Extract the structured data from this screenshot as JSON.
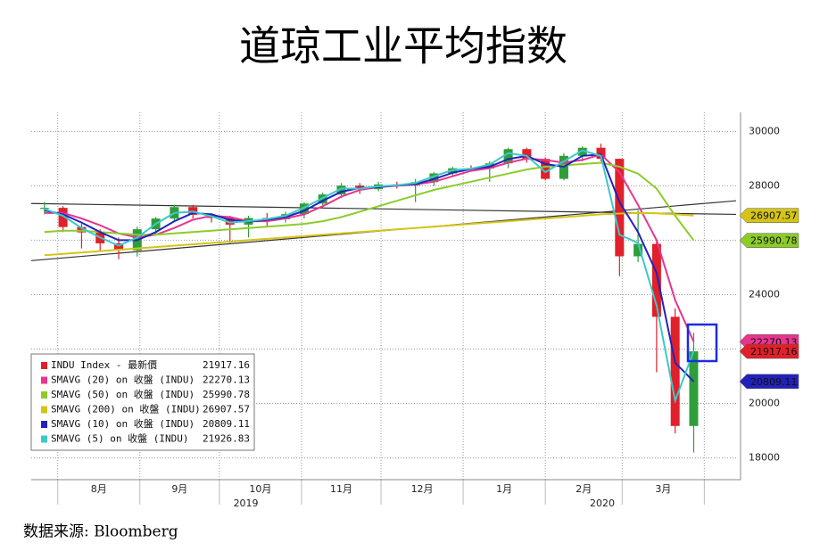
{
  "chart_data": {
    "type": "candlestick",
    "title": "道琼工业平均指数",
    "source": "数据来源: Bloomberg",
    "xlim": [
      0,
      266
    ],
    "ylim": [
      17200,
      30700
    ],
    "yticks": [
      18000,
      20000,
      22000,
      24000,
      26000,
      28000,
      30000
    ],
    "xticks": [
      {
        "value": 25.5,
        "label": "8月"
      },
      {
        "value": 56,
        "label": "9月"
      },
      {
        "value": 86.5,
        "label": "10月"
      },
      {
        "value": 117,
        "label": "11月"
      },
      {
        "value": 147.5,
        "label": "12月"
      },
      {
        "value": 178.5,
        "label": "1月"
      },
      {
        "value": 208.5,
        "label": "2月"
      },
      {
        "value": 238.5,
        "label": "3月"
      }
    ],
    "xgrid": [
      10,
      41,
      71,
      102,
      132,
      163,
      194,
      223,
      254
    ],
    "year_labels": [
      {
        "value": 81,
        "label": "2019"
      },
      {
        "value": 215.5,
        "label": "2020"
      }
    ],
    "grid": true,
    "x": [
      5,
      12,
      19,
      26,
      33,
      40,
      47,
      54,
      61,
      68,
      75,
      82,
      89,
      96,
      103,
      110,
      117,
      124,
      131,
      138,
      145,
      152,
      159,
      166,
      173,
      180,
      187,
      194,
      201,
      208,
      215,
      222,
      229,
      236,
      243,
      250
    ],
    "candles": {
      "name": "INDU Index - 最新價",
      "color": "#e0202a",
      "up_color": "#2e9e3a",
      "down_color": "#e0202a",
      "open": [
        27150,
        27190,
        26485,
        26287,
        25886,
        25628,
        26403,
        26797,
        27219,
        26935,
        26820,
        26573,
        26817,
        26770,
        26958,
        27347,
        27681,
        28005,
        27876,
        28051,
        28015,
        28135,
        28455,
        28645,
        28634,
        28824,
        29348,
        28990,
        28256,
        29102,
        29398,
        28992,
        25409,
        25865,
        23186,
        19174
      ],
      "high": [
        27400,
        27250,
        26600,
        26400,
        26100,
        26500,
        26850,
        27300,
        27300,
        27000,
        26900,
        26900,
        27000,
        27050,
        27400,
        27750,
        28100,
        28100,
        28150,
        28150,
        28250,
        28500,
        28700,
        28750,
        28900,
        29400,
        29400,
        29050,
        29200,
        29450,
        29550,
        29000,
        27100,
        26000,
        23500,
        22600
      ],
      "low": [
        26950,
        26300,
        25700,
        25600,
        25300,
        25400,
        26200,
        26700,
        26800,
        26650,
        25900,
        26100,
        26500,
        26650,
        26800,
        27200,
        27550,
        27700,
        27800,
        27900,
        27400,
        28000,
        28350,
        28550,
        28150,
        28650,
        28850,
        28200,
        28200,
        28900,
        28900,
        24680,
        25200,
        21150,
        18900,
        18200
      ],
      "close": [
        27190,
        26485,
        26287,
        25886,
        25628,
        26403,
        26797,
        27219,
        26935,
        26820,
        26573,
        26817,
        26770,
        26958,
        27347,
        27681,
        28005,
        27876,
        28051,
        28015,
        28135,
        28455,
        28645,
        28634,
        28824,
        29348,
        28990,
        28256,
        29102,
        29398,
        28992,
        25409,
        25865,
        23186,
        19174,
        21917.16
      ]
    },
    "series": [
      {
        "name": "SMAVG (20)  on 收盤 (INDU)",
        "color": "#e8358f",
        "values": [
          27000,
          27000,
          26800,
          26550,
          26250,
          26100,
          26200,
          26450,
          26750,
          26900,
          26850,
          26700,
          26700,
          26800,
          26950,
          27250,
          27600,
          27850,
          27950,
          28000,
          28050,
          28150,
          28350,
          28550,
          28650,
          28850,
          29000,
          28950,
          28850,
          28950,
          29150,
          28500,
          27300,
          26000,
          23800,
          22270.13
        ]
      },
      {
        "name": "SMAVG (50)  on 收盤 (INDU)",
        "color": "#8ccc2a",
        "values": [
          26300,
          26350,
          26350,
          26300,
          26250,
          26200,
          26200,
          26250,
          26300,
          26350,
          26400,
          26450,
          26500,
          26550,
          26600,
          26700,
          26850,
          27050,
          27250,
          27450,
          27650,
          27850,
          28000,
          28150,
          28300,
          28450,
          28600,
          28700,
          28750,
          28800,
          28850,
          28700,
          28450,
          27900,
          26900,
          25990.78
        ]
      },
      {
        "name": "SMAVG (200) on 收盤 (INDU)",
        "color": "#d4c419",
        "values": [
          25450,
          25500,
          25550,
          25600,
          25650,
          25700,
          25750,
          25800,
          25850,
          25900,
          25950,
          26000,
          26050,
          26100,
          26150,
          26200,
          26250,
          26300,
          26350,
          26400,
          26450,
          26500,
          26550,
          26600,
          26650,
          26700,
          26750,
          26800,
          26850,
          26900,
          26950,
          26980,
          27000,
          26990,
          26950,
          26907.57
        ]
      },
      {
        "name": "SMAVG (10)  on 收盤 (INDU)",
        "color": "#2222bb",
        "values": [
          27100,
          26950,
          26650,
          26300,
          26000,
          26000,
          26300,
          26700,
          27000,
          26950,
          26750,
          26680,
          26750,
          26850,
          27080,
          27450,
          27780,
          27920,
          27950,
          28020,
          28060,
          28250,
          28480,
          28620,
          28700,
          28980,
          29100,
          28800,
          28700,
          29100,
          29150,
          27400,
          26300,
          24800,
          21500,
          20809.11
        ]
      },
      {
        "name": "SMAVG (5)  on 收盤 (INDU)",
        "color": "#3cc8c8",
        "values": [
          27150,
          26900,
          26450,
          26100,
          25800,
          26100,
          26600,
          27000,
          27050,
          26880,
          26650,
          26700,
          26780,
          26900,
          27200,
          27550,
          27900,
          27900,
          27980,
          28020,
          28100,
          28350,
          28580,
          28630,
          28780,
          29200,
          29100,
          28500,
          28900,
          29300,
          29100,
          26200,
          25900,
          23600,
          20100,
          21926.83
        ]
      }
    ],
    "trendlines": [
      {
        "start": 27350,
        "end": 26950,
        "color": "#333333"
      },
      {
        "start": 25250,
        "end": 27450,
        "color": "#333333"
      }
    ],
    "tags": [
      2,
      1,
      0,
      3
    ]
  }
}
